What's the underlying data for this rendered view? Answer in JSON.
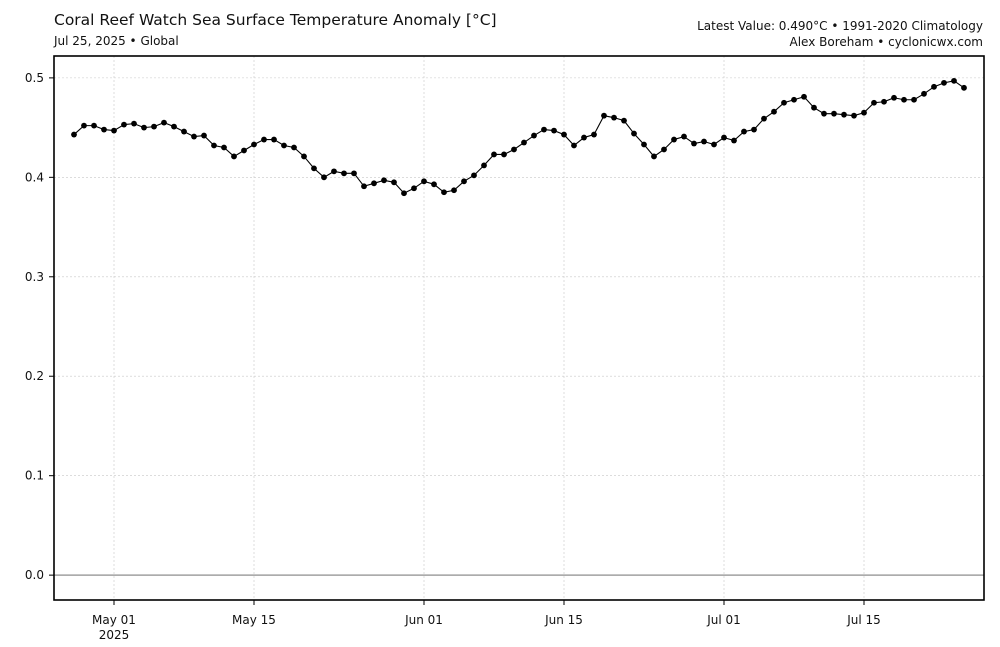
{
  "header": {
    "title": "Coral Reef Watch Sea Surface Temperature Anomaly [°C]",
    "subtitle": "Jul 25, 2025 • Global",
    "info_line1": "Latest Value: 0.490°C • 1991-2020 Climatology",
    "info_line2": "Alex Boreham • cyclonicwx.com"
  },
  "chart_data": {
    "type": "line",
    "title": "Coral Reef Watch Sea Surface Temperature Anomaly [°C]",
    "xlabel": "",
    "ylabel": "",
    "x_start": "2025-04-27",
    "x_step_days": 1,
    "xlim": [
      "2025-04-25",
      "2025-07-27"
    ],
    "ylim": [
      -0.025,
      0.522
    ],
    "grid": true,
    "y_ticks": [
      0.0,
      0.1,
      0.2,
      0.3,
      0.4,
      0.5
    ],
    "y_tick_labels": [
      "0.0",
      "0.1",
      "0.2",
      "0.3",
      "0.4",
      "0.5"
    ],
    "x_ticks": [
      "2025-05-01",
      "2025-05-15",
      "2025-06-01",
      "2025-06-15",
      "2025-07-01",
      "2025-07-15"
    ],
    "x_tick_labels": [
      "May 01",
      "May 15",
      "Jun 01",
      "Jun 15",
      "Jul 01",
      "Jul 15"
    ],
    "x_tick_sublabel": "2025",
    "reference_line": 0.0,
    "series": [
      {
        "name": "",
        "color": "#000000",
        "values": [
          0.443,
          0.452,
          0.452,
          0.448,
          0.447,
          0.453,
          0.454,
          0.45,
          0.451,
          0.455,
          0.451,
          0.446,
          0.441,
          0.442,
          0.432,
          0.43,
          0.421,
          0.427,
          0.433,
          0.438,
          0.438,
          0.432,
          0.43,
          0.421,
          0.409,
          0.4,
          0.406,
          0.404,
          0.404,
          0.391,
          0.394,
          0.397,
          0.395,
          0.384,
          0.389,
          0.396,
          0.393,
          0.385,
          0.387,
          0.396,
          0.402,
          0.412,
          0.423,
          0.423,
          0.428,
          0.435,
          0.442,
          0.448,
          0.447,
          0.443,
          0.432,
          0.44,
          0.443,
          0.462,
          0.46,
          0.457,
          0.444,
          0.433,
          0.421,
          0.428,
          0.438,
          0.441,
          0.434,
          0.436,
          0.433,
          0.44,
          0.437,
          0.446,
          0.448,
          0.459,
          0.466,
          0.475,
          0.478,
          0.481,
          0.47,
          0.464,
          0.464,
          0.463,
          0.462,
          0.465,
          0.475,
          0.476,
          0.48,
          0.478,
          0.478,
          0.484,
          0.491,
          0.495,
          0.497,
          0.49
        ]
      }
    ]
  }
}
